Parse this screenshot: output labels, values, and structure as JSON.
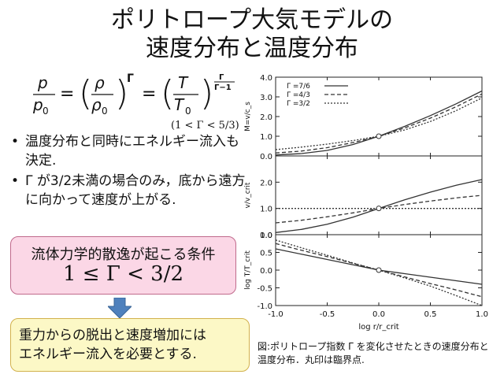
{
  "slide": {
    "title_line1": "ポリトロープ大気モデルの",
    "title_line2": "速度分布と温度分布"
  },
  "equation": {
    "lhs_num": "p",
    "lhs_den": "p",
    "lhs_den_sub": "0",
    "mid_num": "ρ",
    "mid_den": "ρ",
    "mid_den_sub": "0",
    "mid_exp": "Γ",
    "rhs_num": "T",
    "rhs_den": "T",
    "rhs_den_sub": "0",
    "rhs_exp_num": "Γ",
    "rhs_exp_den": "Γ−1",
    "condition": "(1 < Γ < 5/3)"
  },
  "bullets": [
    {
      "marker": "•",
      "text": "温度分布と同時にエネルギー流入も決定."
    },
    {
      "marker": "•",
      "text": "Γ が3/2未満の場合のみ，底から遠方に向かって速度が上がる."
    }
  ],
  "condition_box": {
    "heading": "流体力学的散逸が起こる条件",
    "formula": "1 ≤ Γ < 3/2"
  },
  "result_box": {
    "line1": "重力からの脱出と速度増加には",
    "line2": "エネルギー流入を必要とする."
  },
  "caption": "図:ポリトロープ指数 Γ を変化させたときの速度分布と温度分布．丸印は臨界点.",
  "colors": {
    "pink_box": "#fbd7e6",
    "yellow_box": "#fcf8c6",
    "arrow": "#4f81bd"
  },
  "chart_data": {
    "type": "line",
    "xlabel": "log r/r_crit",
    "xlim": [
      -1.0,
      1.0
    ],
    "x_ticks": [
      "-1.0",
      "-0.5",
      "0.0",
      "0.5",
      "1.0"
    ],
    "x": [
      -1.0,
      -0.75,
      -0.5,
      -0.25,
      0.0,
      0.25,
      0.5,
      0.75,
      1.0
    ],
    "legend_position": "top-left of top panel",
    "series_styles": [
      {
        "name": "Γ =7/6",
        "dash": "solid"
      },
      {
        "name": "Γ =4/3",
        "dash": "dashed"
      },
      {
        "name": "Γ =3/2",
        "dash": "dotted"
      }
    ],
    "panels": [
      {
        "ylabel": "M=v/c_s",
        "ylim": [
          0.0,
          4.0
        ],
        "y_ticks": [
          "0.0",
          "1.0",
          "2.0",
          "3.0",
          "4.0"
        ],
        "critical_point": [
          0.0,
          1.0
        ],
        "series": [
          {
            "name": "Γ =7/6",
            "values": [
              0.05,
              0.12,
              0.28,
              0.58,
              1.0,
              1.5,
              2.05,
              2.65,
              3.3
            ]
          },
          {
            "name": "Γ =4/3",
            "values": [
              0.15,
              0.25,
              0.42,
              0.68,
              1.0,
              1.42,
              1.92,
              2.5,
              3.15
            ]
          },
          {
            "name": "Γ =3/2",
            "values": [
              0.32,
              0.45,
              0.6,
              0.78,
              1.0,
              1.32,
              1.75,
              2.3,
              2.95
            ]
          }
        ]
      },
      {
        "ylabel": "v/v_crit",
        "ylim": [
          0.0,
          3.0
        ],
        "y_ticks": [
          "0.0",
          "1.0",
          "2.0"
        ],
        "critical_point": [
          0.0,
          1.0
        ],
        "series": [
          {
            "name": "Γ =7/6",
            "values": [
              0.08,
              0.2,
              0.4,
              0.67,
              1.0,
              1.33,
              1.62,
              1.88,
              2.1
            ]
          },
          {
            "name": "Γ =4/3",
            "values": [
              0.45,
              0.55,
              0.68,
              0.83,
              1.0,
              1.15,
              1.28,
              1.4,
              1.5
            ]
          },
          {
            "name": "Γ =3/2",
            "values": [
              1.0,
              1.0,
              1.0,
              1.0,
              1.0,
              1.0,
              1.0,
              1.0,
              1.0
            ]
          }
        ]
      },
      {
        "ylabel": "log T/T_crit",
        "ylim": [
          -1.0,
          1.0
        ],
        "y_ticks": [
          "-1.0",
          "-0.5",
          "0.0",
          "0.5",
          "1.0"
        ],
        "critical_point": [
          0.0,
          0.0
        ],
        "series": [
          {
            "name": "Γ =7/6",
            "values": [
              0.6,
              0.45,
              0.3,
              0.15,
              0.0,
              -0.1,
              -0.2,
              -0.3,
              -0.4
            ]
          },
          {
            "name": "Γ =4/3",
            "values": [
              0.75,
              0.56,
              0.38,
              0.19,
              0.0,
              -0.19,
              -0.38,
              -0.56,
              -0.75
            ]
          },
          {
            "name": "Γ =3/2",
            "values": [
              0.85,
              0.63,
              0.42,
              0.2,
              0.0,
              -0.22,
              -0.45,
              -0.72,
              -1.0
            ]
          }
        ]
      }
    ]
  }
}
